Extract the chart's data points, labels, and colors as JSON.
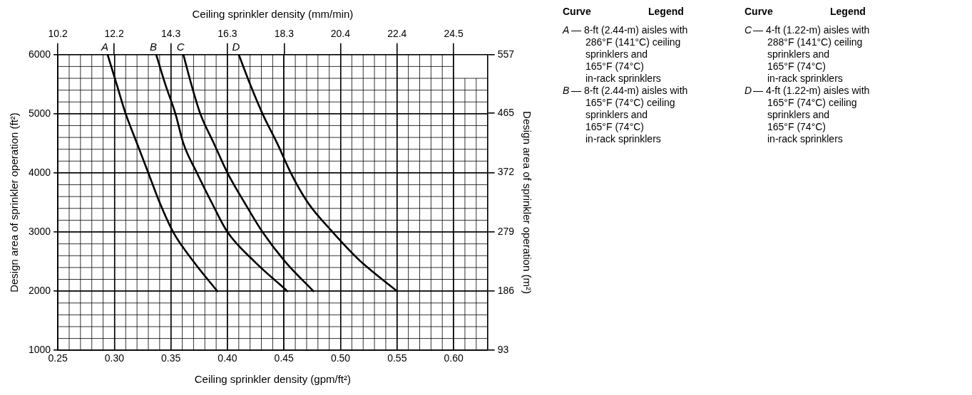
{
  "chart_data": {
    "type": "line",
    "xlabel": "Ceiling sprinkler density (gpm/ft²)",
    "x2label": "Ceiling sprinkler density (mm/min)",
    "ylabel": "Design area of sprinkler operation (ft²)",
    "y2label": "Design area of sprinkler operation (m²)",
    "xlim": [
      0.25,
      0.63
    ],
    "xticks": [
      0.25,
      {
        "value": 0.3,
        "label": "0.30"
      },
      0.35,
      {
        "value": 0.4,
        "label": "0.40"
      },
      0.45,
      {
        "value": 0.5,
        "label": "0.50"
      },
      0.55,
      {
        "value": 0.6,
        "label": "0.60"
      }
    ],
    "x2lim": [
      10.19,
      25.67
    ],
    "x2ticks": [
      {
        "value": 10.19,
        "label": "10.2"
      },
      {
        "value": 12.22,
        "label": "12.2"
      },
      {
        "value": 14.26,
        "label": "14.3"
      },
      {
        "value": 16.3,
        "label": "16.3"
      },
      {
        "value": 18.34,
        "label": "18.3"
      },
      {
        "value": 20.37,
        "label": "20.4"
      },
      {
        "value": 22.41,
        "label": "22.4"
      },
      {
        "value": 24.45,
        "label": "24.5"
      }
    ],
    "ylim": [
      1000,
      6000
    ],
    "yticks": [
      1000,
      2000,
      3000,
      4000,
      5000,
      6000
    ],
    "y2lim": [
      93,
      557
    ],
    "y2ticks": [
      93,
      186,
      279,
      372,
      465,
      557
    ],
    "grid": true,
    "line_style": "solid",
    "legend": "top",
    "series": [
      {
        "name": "A",
        "color": "#000000",
        "x": [
          0.294,
          0.302,
          0.31,
          0.32,
          0.33,
          0.34,
          0.352,
          0.37,
          0.391
        ],
        "values": [
          6000,
          5500,
          5000,
          4500,
          4000,
          3500,
          3000,
          2500,
          2000
        ]
      },
      {
        "name": "B",
        "color": "#000000",
        "x": [
          0.337,
          0.345,
          0.354,
          0.361,
          0.373,
          0.386,
          0.4,
          0.424,
          0.453
        ],
        "values": [
          6000,
          5500,
          5000,
          4500,
          4000,
          3500,
          3000,
          2500,
          2000
        ]
      },
      {
        "name": "C",
        "color": "#000000",
        "x": [
          0.361,
          0.368,
          0.376,
          0.388,
          0.4,
          0.415,
          0.431,
          0.451,
          0.476
        ],
        "values": [
          6000,
          5500,
          5000,
          4500,
          4000,
          3500,
          3000,
          2500,
          2000
        ]
      },
      {
        "name": "D",
        "color": "#000000",
        "x": [
          0.41,
          0.42,
          0.431,
          0.444,
          0.456,
          0.471,
          0.493,
          0.518,
          0.55
        ],
        "values": [
          6000,
          5500,
          5000,
          4500,
          4000,
          3500,
          3000,
          2500,
          2000
        ]
      }
    ],
    "annotations": [
      "Curve",
      "Legend",
      "Curve",
      "Legend",
      "— 8-ft (2.44-m) aisles with\n286°F (141°C) ceiling\nsprinklers and\n165°F (74°C)\nin-rack sprinklers",
      "— 8-ft (2.44-m) aisles with\n165°F (74°C) ceiling\nsprinklers and\n165°F (74°C)\nin-rack sprinklers",
      "— 4-ft (1.22-m) aisles with\n288°F (141°C) ceiling\nsprinklers and\n165°F (74°C)\nin-rack sprinklers",
      "— 4-ft (1.22-m) aisles with\n165°F (74°C) ceiling\nsprinklers and\n165°F (74°C)\nin-rack sprinklers"
    ]
  }
}
